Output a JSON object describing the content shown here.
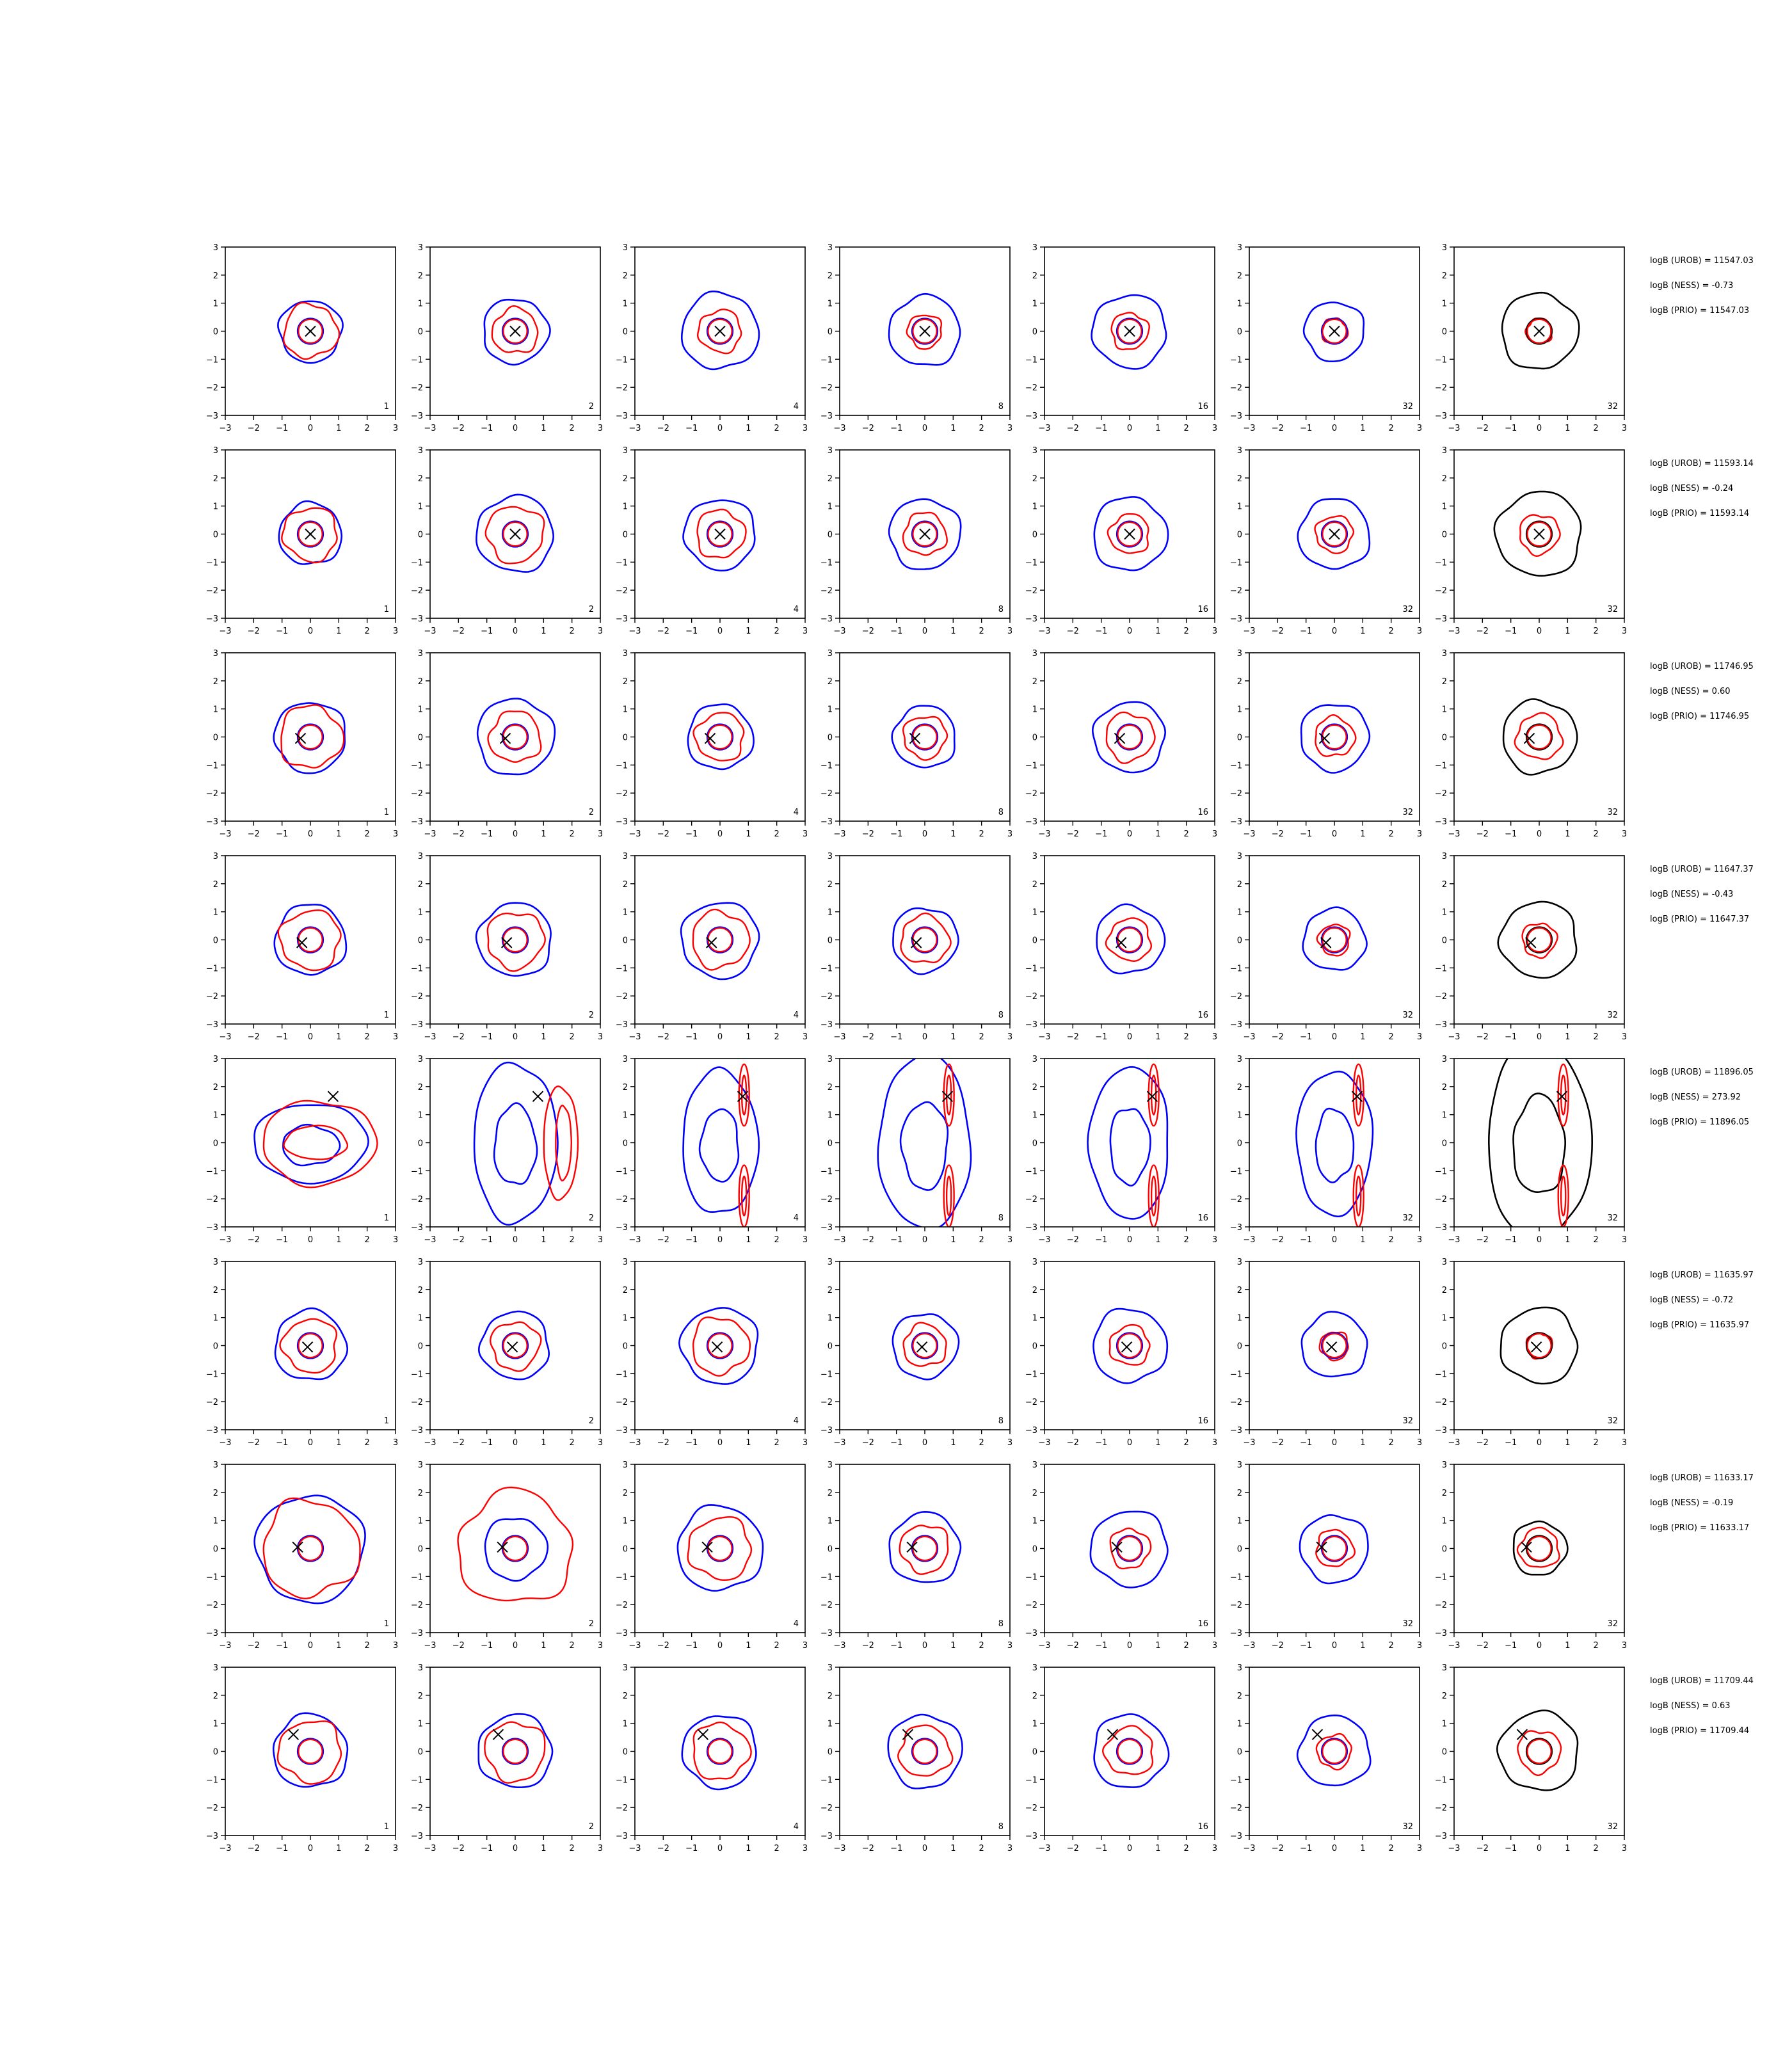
{
  "chart_data": {
    "type": "contour",
    "grid": {
      "rows": 8,
      "cols": 7
    },
    "xlim": [
      -3,
      3
    ],
    "ylim": [
      -3,
      3
    ],
    "ticks": [
      "−3",
      "−2",
      "−1",
      "0",
      "1",
      "2",
      "3"
    ],
    "tick_values": [
      -3,
      -2,
      -1,
      0,
      1,
      2,
      3
    ],
    "panel_numbers": [
      "1",
      "2",
      "4",
      "8",
      "16",
      "32",
      "32"
    ],
    "grid_lines": false,
    "colors": {
      "outer": "#0000ff",
      "inner": "#ff0000",
      "prior": "#000000",
      "marker": "#000000"
    },
    "rows": [
      {
        "center": [
          0,
          0
        ],
        "marker": [
          0,
          0
        ],
        "annotations": [
          "logB (UROB) = 11547.03",
          "logB (NESS) = -0.73",
          "logB (PRIO) = 11547.03"
        ],
        "r_outer": [
          1.1,
          1.15,
          1.35,
          1.25,
          1.3,
          1.05,
          1.35
        ],
        "r_inner": [
          0.95,
          0.8,
          0.75,
          0.6,
          0.65,
          0.45,
          0.45
        ]
      },
      {
        "center": [
          0,
          0
        ],
        "marker": [
          0,
          0
        ],
        "annotations": [
          "logB (UROB) = 11593.14",
          "logB (NESS) = -0.24",
          "logB (PRIO) = 11593.14"
        ],
        "r_outer": [
          1.1,
          1.35,
          1.25,
          1.25,
          1.3,
          1.25,
          1.5
        ],
        "r_inner": [
          0.95,
          1.0,
          0.85,
          0.75,
          0.7,
          0.65,
          0.7
        ]
      },
      {
        "center": [
          0,
          0
        ],
        "marker": [
          -0.35,
          -0.05
        ],
        "annotations": [
          "logB (UROB) = 11746.95",
          "logB (NESS) = 0.60",
          "logB (PRIO) = 11746.95"
        ],
        "r_outer": [
          1.25,
          1.35,
          1.15,
          1.1,
          1.25,
          1.2,
          1.3
        ],
        "r_inner": [
          1.1,
          0.9,
          0.85,
          0.75,
          0.85,
          0.7,
          0.8
        ]
      },
      {
        "center": [
          0,
          0
        ],
        "marker": [
          -0.3,
          -0.1
        ],
        "annotations": [
          "logB (UROB) = 11647.37",
          "logB (NESS) = -0.43",
          "logB (PRIO) = 11647.37"
        ],
        "r_outer": [
          1.25,
          1.3,
          1.35,
          1.15,
          1.2,
          1.1,
          1.35
        ],
        "r_inner": [
          1.05,
          1.0,
          1.0,
          0.85,
          0.75,
          0.55,
          0.6
        ]
      },
      {
        "center": [
          0,
          0
        ],
        "marker": [
          0.8,
          1.65
        ],
        "annotations": [
          "logB (UROB) = 11896.05",
          "logB (NESS) = 273.92",
          "logB (PRIO) = 11896.05"
        ],
        "r_outer": [
          2.0,
          2.1,
          1.9,
          2.3,
          2.0,
          1.9,
          2.6
        ],
        "r_inner": [
          0.8,
          1.1,
          0.6,
          0.6,
          0.4,
          0.7,
          0.5
        ]
      },
      {
        "center": [
          0,
          0
        ],
        "marker": [
          -0.1,
          -0.05
        ],
        "annotations": [
          "logB (UROB) = 11635.97",
          "logB (NESS) = -0.72",
          "logB (PRIO) = 11635.97"
        ],
        "r_outer": [
          1.25,
          1.2,
          1.35,
          1.15,
          1.3,
          1.15,
          1.35
        ],
        "r_inner": [
          0.95,
          0.85,
          1.0,
          0.75,
          0.7,
          0.5,
          0.45
        ]
      },
      {
        "center": [
          0,
          0
        ],
        "marker": [
          -0.45,
          0.05
        ],
        "annotations": [
          "logB (UROB) = 11633.17",
          "logB (NESS) = -0.19",
          "logB (PRIO) = 11633.17"
        ],
        "r_outer": [
          1.9,
          1.1,
          1.5,
          1.25,
          1.35,
          1.2,
          0.95
        ],
        "r_inner": [
          1.7,
          2.0,
          1.1,
          0.85,
          0.7,
          0.65,
          0.7
        ]
      },
      {
        "center": [
          0,
          0
        ],
        "marker": [
          -0.6,
          0.6
        ],
        "annotations": [
          "logB (UROB) = 11709.44",
          "logB (NESS) = 0.63",
          "logB (PRIO) = 11709.44"
        ],
        "r_outer": [
          1.3,
          1.3,
          1.3,
          1.3,
          1.3,
          1.25,
          1.4
        ],
        "r_inner": [
          1.1,
          1.05,
          1.0,
          0.9,
          0.85,
          0.6,
          0.75
        ]
      }
    ]
  }
}
